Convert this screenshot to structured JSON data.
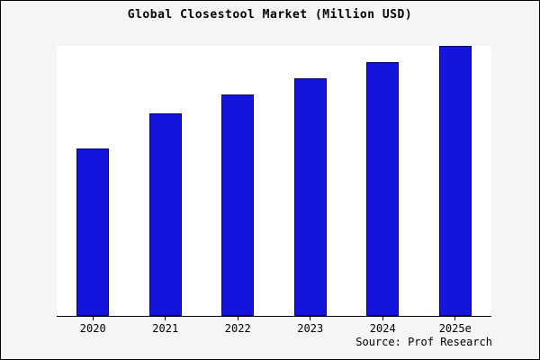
{
  "title": "Global Closestool Market (Million USD)",
  "source": "Source: Prof Research",
  "colors": {
    "bar": "#1414dc",
    "bar_border": "#000080",
    "page_bg": "#f5f5f5",
    "plot_bg": "#ffffff"
  },
  "chart_data": {
    "type": "bar",
    "categories": [
      "2020",
      "2021",
      "2022",
      "2023",
      "2024",
      "2025e"
    ],
    "values": [
      62,
      75,
      82,
      88,
      94,
      100
    ],
    "title": "Global Closestool Market (Million USD)",
    "xlabel": "",
    "ylabel": "",
    "ylim": [
      0,
      100
    ],
    "grid": false,
    "legend": "none",
    "note": "Y-axis has no tick labels; values are relative estimates with tallest bar (2025e) = 100"
  }
}
